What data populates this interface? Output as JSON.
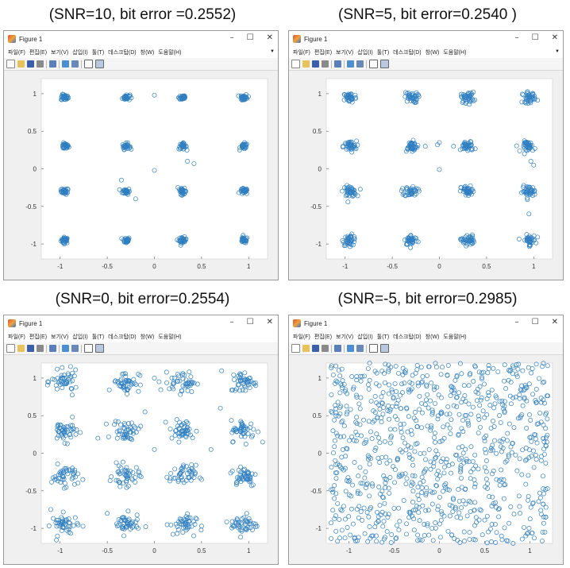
{
  "captions": [
    "(SNR=10, bit error =0.2552)",
    "(SNR=5, bit error=0.2540 )",
    "(SNR=0, bit error=0.2554)",
    "(SNR=-5, bit error=0.2985)"
  ],
  "window": {
    "title": "Figure 1",
    "controls": [
      "–",
      "☐",
      "✕"
    ],
    "menus": [
      "파일(F)",
      "편집(E)",
      "보기(V)",
      "삽입(I)",
      "툴(T)",
      "데스크탑(D)",
      "창(W)",
      "도움말(H)"
    ]
  },
  "colors": {
    "marker": "#2f7fc1",
    "axes_bg": "#ffffff",
    "figure_bg": "#f0f0f0"
  },
  "chart_data": [
    {
      "type": "scatter",
      "title": "",
      "xlim": [
        -1.2,
        1.2
      ],
      "ylim": [
        -1.2,
        1.2
      ],
      "xticks": [
        "-1",
        "-0.5",
        "0",
        "0.5",
        "1"
      ],
      "yticks": [
        "1",
        "0.5",
        "0",
        "-0.5",
        "-1"
      ],
      "constellation": [
        -0.95,
        -0.3,
        0.3,
        0.95
      ],
      "spread": 0.02,
      "points_per_cluster": 30,
      "outliers": [
        [
          0.0,
          0.98
        ],
        [
          0.0,
          -0.02
        ],
        [
          0.35,
          0.1
        ],
        [
          -0.35,
          -0.15
        ],
        [
          -0.2,
          -0.4
        ],
        [
          0.25,
          -0.25
        ],
        [
          0.42,
          0.07
        ]
      ]
    },
    {
      "type": "scatter",
      "title": "",
      "xlim": [
        -1.2,
        1.2
      ],
      "ylim": [
        -1.2,
        1.2
      ],
      "xticks": [
        "-1",
        "-0.5",
        "0",
        "0.5",
        "1"
      ],
      "yticks": [
        "1",
        "0.5",
        "0",
        "-0.5",
        "-1"
      ],
      "constellation": [
        -0.95,
        -0.3,
        0.3,
        0.95
      ],
      "spread": 0.035,
      "points_per_cluster": 40,
      "outliers": [
        [
          0.0,
          0.35
        ],
        [
          0.0,
          -0.01
        ],
        [
          0.15,
          0.3
        ],
        [
          -0.15,
          0.3
        ],
        [
          0.97,
          0.1
        ],
        [
          1.0,
          0.05
        ],
        [
          0.95,
          -0.6
        ],
        [
          -0.02,
          0.32
        ]
      ]
    },
    {
      "type": "scatter",
      "title": "",
      "xlim": [
        -1.2,
        1.2
      ],
      "ylim": [
        -1.2,
        1.2
      ],
      "xticks": [
        "-1",
        "-0.5",
        "0",
        "0.5",
        "1"
      ],
      "yticks": [
        "1",
        "0.5",
        "0",
        "-0.5",
        "-1"
      ],
      "constellation": [
        -0.95,
        -0.3,
        0.3,
        0.95
      ],
      "spread": 0.07,
      "points_per_cluster": 45,
      "outliers": [
        [
          0.0,
          1.0
        ],
        [
          0.05,
          0.95
        ],
        [
          -0.1,
          0.55
        ],
        [
          0.0,
          0.05
        ],
        [
          0.7,
          0.6
        ],
        [
          -0.6,
          0.2
        ],
        [
          -1.1,
          -0.75
        ],
        [
          0.5,
          -0.35
        ],
        [
          -0.5,
          -0.8
        ],
        [
          0.6,
          0.05
        ]
      ]
    },
    {
      "type": "scatter",
      "title": "",
      "xlim": [
        -1.25,
        1.25
      ],
      "ylim": [
        -1.2,
        1.2
      ],
      "xticks": [
        "-1",
        "-0.5",
        "0",
        "0.5",
        "1"
      ],
      "yticks": [
        "1",
        "0.5",
        "0",
        "-0.5",
        "-1"
      ],
      "uniform_points": 900,
      "uniform_range": [
        -1.2,
        1.2
      ]
    }
  ]
}
